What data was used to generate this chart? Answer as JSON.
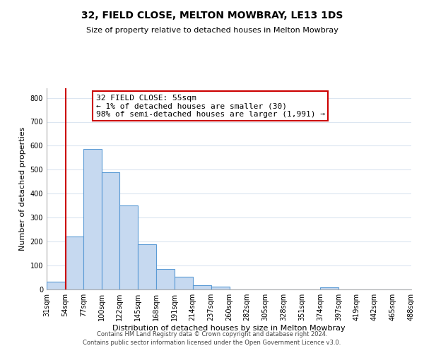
{
  "title": "32, FIELD CLOSE, MELTON MOWBRAY, LE13 1DS",
  "subtitle": "Size of property relative to detached houses in Melton Mowbray",
  "xlabel": "Distribution of detached houses by size in Melton Mowbray",
  "ylabel": "Number of detached properties",
  "bar_edges": [
    31,
    54,
    77,
    100,
    122,
    145,
    168,
    191,
    214,
    237,
    260,
    282,
    305,
    328,
    351,
    374,
    397,
    419,
    442,
    465,
    488
  ],
  "bar_heights": [
    33,
    222,
    588,
    488,
    352,
    188,
    85,
    52,
    18,
    13,
    0,
    0,
    0,
    0,
    0,
    8,
    0,
    0,
    0,
    0
  ],
  "bar_color": "#c6d9f0",
  "bar_edge_color": "#5b9bd5",
  "property_line_x": 55,
  "property_line_color": "#cc0000",
  "annotation_line1": "32 FIELD CLOSE: 55sqm",
  "annotation_line2": "← 1% of detached houses are smaller (30)",
  "annotation_line3": "98% of semi-detached houses are larger (1,991) →",
  "annotation_box_color": "#ffffff",
  "annotation_box_edge_color": "#cc0000",
  "ylim": [
    0,
    840
  ],
  "yticks": [
    0,
    100,
    200,
    300,
    400,
    500,
    600,
    700,
    800
  ],
  "xlim": [
    31,
    488
  ],
  "x_tick_labels": [
    "31sqm",
    "54sqm",
    "77sqm",
    "100sqm",
    "122sqm",
    "145sqm",
    "168sqm",
    "191sqm",
    "214sqm",
    "237sqm",
    "260sqm",
    "282sqm",
    "305sqm",
    "328sqm",
    "351sqm",
    "374sqm",
    "397sqm",
    "419sqm",
    "442sqm",
    "465sqm",
    "488sqm"
  ],
  "x_tick_positions": [
    31,
    54,
    77,
    100,
    122,
    145,
    168,
    191,
    214,
    237,
    260,
    282,
    305,
    328,
    351,
    374,
    397,
    419,
    442,
    465,
    488
  ],
  "footer_line1": "Contains HM Land Registry data © Crown copyright and database right 2024.",
  "footer_line2": "Contains public sector information licensed under the Open Government Licence v3.0.",
  "background_color": "#ffffff",
  "grid_color": "#dce6f1",
  "title_fontsize": 10,
  "subtitle_fontsize": 8,
  "axis_label_fontsize": 8,
  "tick_fontsize": 7,
  "footer_fontsize": 6
}
